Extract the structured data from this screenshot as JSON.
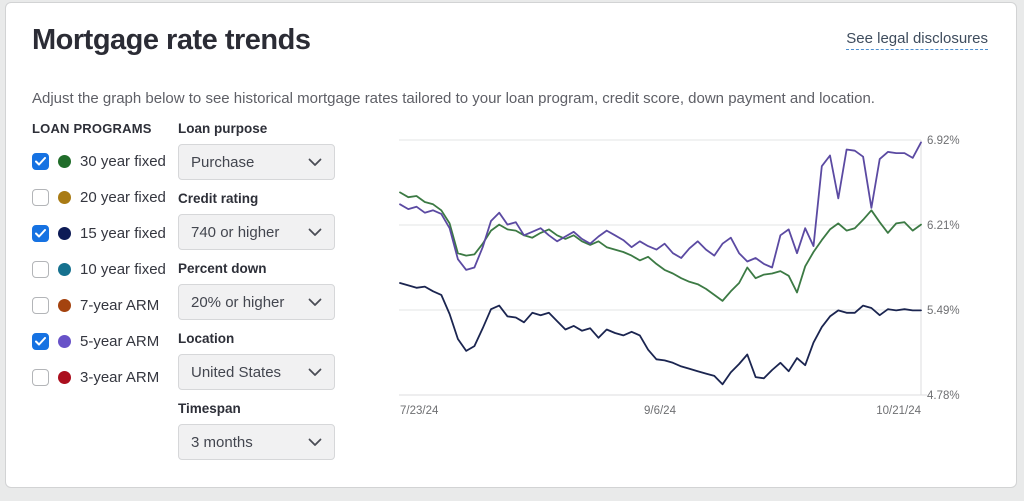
{
  "header": {
    "title": "Mortgage rate trends",
    "legal_link": "See legal disclosures"
  },
  "subtitle": "Adjust the graph below to see historical mortgage rates tailored to your loan program, credit score, down payment and location.",
  "loan_programs": {
    "heading": "LOAN PROGRAMS",
    "items": [
      {
        "label": "30 year fixed",
        "checked": true,
        "color": "#206d2a"
      },
      {
        "label": "20 year fixed",
        "checked": false,
        "color": "#a97b14"
      },
      {
        "label": "15 year fixed",
        "checked": true,
        "color": "#0d1b56"
      },
      {
        "label": "10 year fixed",
        "checked": false,
        "color": "#16718f"
      },
      {
        "label": "7-year ARM",
        "checked": false,
        "color": "#a4430f"
      },
      {
        "label": "5-year ARM",
        "checked": true,
        "color": "#6852c8"
      },
      {
        "label": "3-year ARM",
        "checked": false,
        "color": "#ab0f1e"
      }
    ]
  },
  "filters": [
    {
      "label": "Loan purpose",
      "value": "Purchase"
    },
    {
      "label": "Credit rating",
      "value": "740 or higher"
    },
    {
      "label": "Percent down",
      "value": "20% or higher"
    },
    {
      "label": "Location",
      "value": "United States"
    },
    {
      "label": "Timespan",
      "value": "3 months"
    }
  ],
  "colors": {
    "checkbox_accent": "#1672e2",
    "link_underline": "#4d8fd0",
    "series_30yr": "#3c7a44",
    "series_15yr": "#1b2550",
    "series_5yr_arm": "#5b4aa2"
  },
  "chart_data": {
    "type": "line",
    "title": "",
    "xlabel": "",
    "ylabel": "",
    "x_ticks": [
      "7/23/24",
      "9/6/24",
      "10/21/24"
    ],
    "y_ticks": [
      "6.92%",
      "6.21%",
      "5.49%",
      "4.78%"
    ],
    "ylim": [
      4.78,
      6.92
    ],
    "x_range_days": 90,
    "grid": "horizontal",
    "legend_position": "none (series colors match loan program dots)",
    "series": [
      {
        "name": "30 year fixed",
        "color": "#3c7a44",
        "values": [
          6.48,
          6.44,
          6.45,
          6.4,
          6.38,
          6.33,
          6.22,
          5.97,
          5.95,
          5.96,
          6.05,
          6.16,
          6.21,
          6.17,
          6.16,
          6.12,
          6.1,
          6.14,
          6.17,
          6.12,
          6.09,
          6.12,
          6.07,
          6.04,
          6.07,
          6.02,
          6.0,
          5.98,
          5.95,
          5.91,
          5.94,
          5.88,
          5.83,
          5.8,
          5.76,
          5.73,
          5.71,
          5.67,
          5.62,
          5.57,
          5.65,
          5.72,
          5.85,
          5.76,
          5.79,
          5.8,
          5.82,
          5.78,
          5.64,
          5.86,
          5.98,
          6.08,
          6.17,
          6.22,
          6.16,
          6.18,
          6.25,
          6.33,
          6.23,
          6.14,
          6.22,
          6.23,
          6.16,
          6.21
        ]
      },
      {
        "name": "15 year fixed",
        "color": "#1b2550",
        "values": [
          5.72,
          5.7,
          5.68,
          5.69,
          5.65,
          5.62,
          5.46,
          5.25,
          5.15,
          5.19,
          5.34,
          5.5,
          5.53,
          5.44,
          5.43,
          5.39,
          5.47,
          5.45,
          5.47,
          5.4,
          5.33,
          5.36,
          5.32,
          5.34,
          5.26,
          5.33,
          5.3,
          5.28,
          5.31,
          5.28,
          5.16,
          5.08,
          5.07,
          5.05,
          5.02,
          5.0,
          4.98,
          4.96,
          4.94,
          4.87,
          4.97,
          5.04,
          5.12,
          4.93,
          4.92,
          4.99,
          5.05,
          4.98,
          5.09,
          5.03,
          5.22,
          5.35,
          5.44,
          5.49,
          5.47,
          5.47,
          5.53,
          5.51,
          5.45,
          5.5,
          5.49,
          5.5,
          5.49,
          5.49
        ]
      },
      {
        "name": "5-year ARM",
        "color": "#5b4aa2",
        "values": [
          6.38,
          6.34,
          6.36,
          6.31,
          6.33,
          6.3,
          6.18,
          5.92,
          5.83,
          5.85,
          6.02,
          6.24,
          6.31,
          6.21,
          6.23,
          6.12,
          6.15,
          6.18,
          6.12,
          6.07,
          6.11,
          6.15,
          6.09,
          6.05,
          6.11,
          6.16,
          6.12,
          6.08,
          6.02,
          6.07,
          6.03,
          6.0,
          6.05,
          5.97,
          5.93,
          6.01,
          6.07,
          6.0,
          5.95,
          6.05,
          6.1,
          5.97,
          5.9,
          5.93,
          5.88,
          5.85,
          6.12,
          6.17,
          5.97,
          6.18,
          6.03,
          6.7,
          6.79,
          6.43,
          6.84,
          6.83,
          6.78,
          6.35,
          6.76,
          6.82,
          6.81,
          6.81,
          6.77,
          6.9
        ]
      }
    ]
  }
}
